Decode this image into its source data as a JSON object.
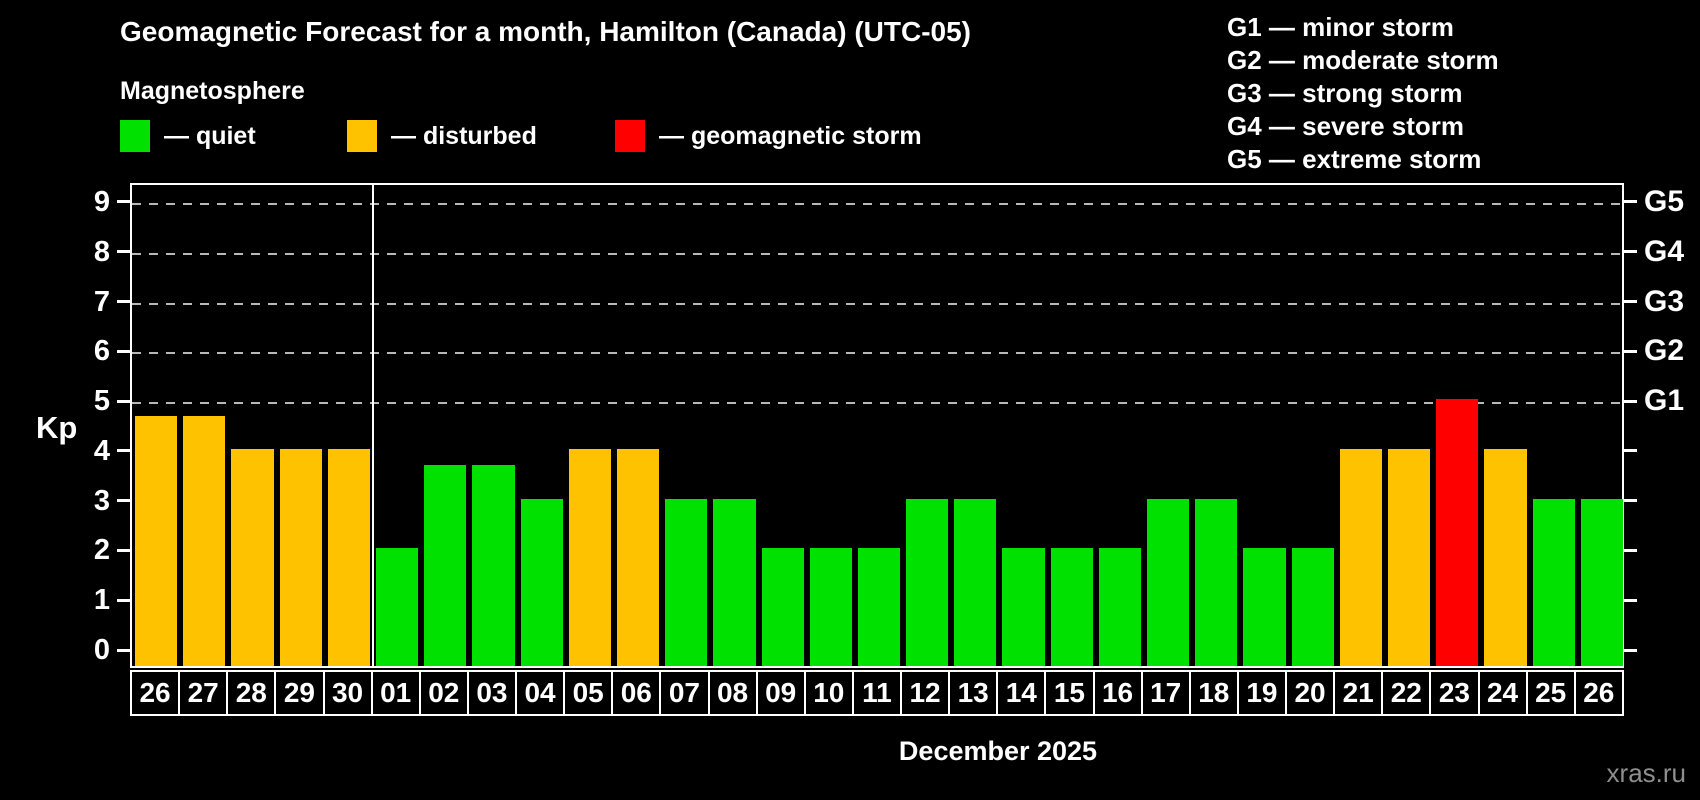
{
  "title": "Geomagnetic Forecast for a month, Hamilton (Canada) (UTC-05)",
  "subtitle": "Magnetosphere",
  "legend": {
    "items": [
      {
        "name": "quiet",
        "label": "— quiet",
        "color": "#00e100"
      },
      {
        "name": "disturbed",
        "label": "— disturbed",
        "color": "#ffc200"
      },
      {
        "name": "storm",
        "label": "— geomagnetic storm",
        "color": "#ff0000"
      }
    ]
  },
  "g_scale": {
    "items": [
      {
        "label": "G1 — minor storm"
      },
      {
        "label": "G2 — moderate storm"
      },
      {
        "label": "G3 — strong storm"
      },
      {
        "label": "G4 — severe storm"
      },
      {
        "label": "G5 — extreme storm"
      }
    ]
  },
  "chart_data": {
    "type": "bar",
    "title": "Geomagnetic Forecast for a month, Hamilton (Canada) (UTC-05)",
    "ylabel": "Kp",
    "xlabel": "December 2025",
    "ylim": [
      0,
      9.7
    ],
    "yticks": [
      0,
      1,
      2,
      3,
      4,
      5,
      6,
      7,
      8,
      9
    ],
    "gridlines_at_kp": [
      5,
      6,
      7,
      8,
      9
    ],
    "right_axis": [
      {
        "kp": 5,
        "label": "G1"
      },
      {
        "kp": 6,
        "label": "G2"
      },
      {
        "kp": 7,
        "label": "G3"
      },
      {
        "kp": 8,
        "label": "G4"
      },
      {
        "kp": 9,
        "label": "G5"
      }
    ],
    "month_separator_after_index": 4,
    "categories": [
      "26",
      "27",
      "28",
      "29",
      "30",
      "01",
      "02",
      "03",
      "04",
      "05",
      "06",
      "07",
      "08",
      "09",
      "10",
      "11",
      "12",
      "13",
      "14",
      "15",
      "16",
      "17",
      "18",
      "19",
      "20",
      "21",
      "22",
      "23",
      "24",
      "25",
      "26"
    ],
    "values": [
      4.67,
      4.67,
      4,
      4,
      4,
      2,
      3.67,
      3.67,
      3,
      4,
      4,
      3,
      3,
      2,
      2,
      2,
      3,
      3,
      2,
      2,
      2,
      3,
      3,
      2,
      2,
      4,
      4,
      5,
      4,
      3,
      3
    ],
    "statuses": [
      "disturbed",
      "disturbed",
      "disturbed",
      "disturbed",
      "disturbed",
      "quiet",
      "quiet",
      "quiet",
      "quiet",
      "disturbed",
      "disturbed",
      "quiet",
      "quiet",
      "quiet",
      "quiet",
      "quiet",
      "quiet",
      "quiet",
      "quiet",
      "quiet",
      "quiet",
      "quiet",
      "quiet",
      "quiet",
      "quiet",
      "disturbed",
      "disturbed",
      "storm",
      "disturbed",
      "quiet",
      "quiet"
    ],
    "status_colors": {
      "quiet": "#00e100",
      "disturbed": "#ffc200",
      "storm": "#ff0000"
    },
    "legend_position": "top-left",
    "grid": "dashed horizontal at Kp 5-9 only"
  },
  "footer": {
    "month_label": "December 2025",
    "watermark": "xras.ru"
  }
}
